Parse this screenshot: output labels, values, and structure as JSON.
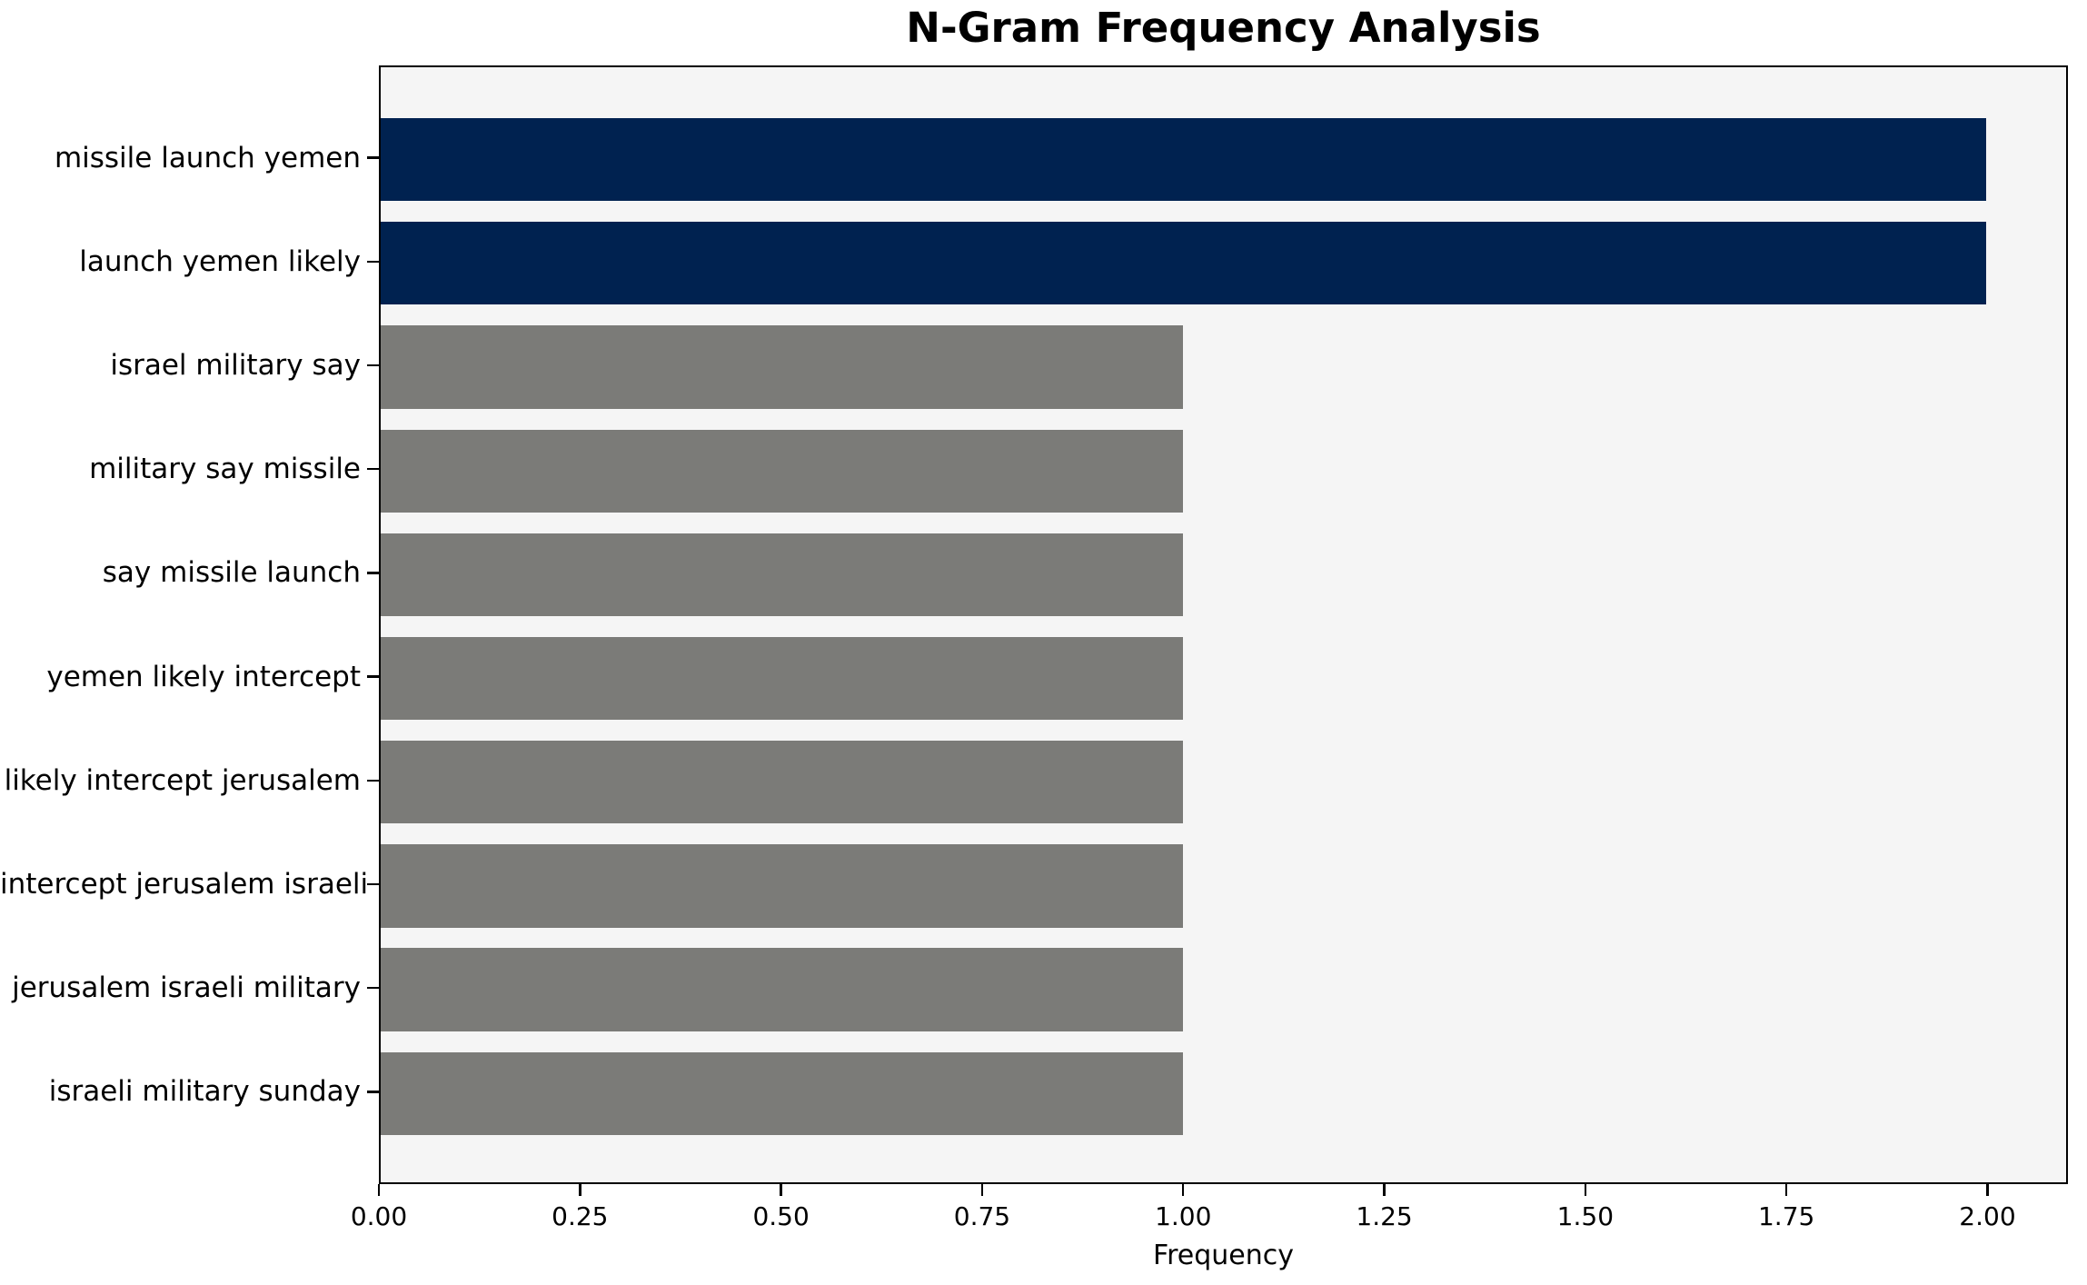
{
  "chart_data": {
    "type": "bar",
    "orientation": "horizontal",
    "title": "N-Gram Frequency Analysis",
    "xlabel": "Frequency",
    "ylabel": "",
    "categories": [
      "missile launch yemen",
      "launch yemen likely",
      "israel military say",
      "military say missile",
      "say missile launch",
      "yemen likely intercept",
      "likely intercept jerusalem",
      "intercept jerusalem israeli",
      "jerusalem israeli military",
      "israeli military sunday"
    ],
    "values": [
      2,
      2,
      1,
      1,
      1,
      1,
      1,
      1,
      1,
      1
    ],
    "bar_colors": [
      "#002250",
      "#002250",
      "#7b7b78",
      "#7b7b78",
      "#7b7b78",
      "#7b7b78",
      "#7b7b78",
      "#7b7b78",
      "#7b7b78",
      "#7b7b78"
    ],
    "xlim": [
      0,
      2.1
    ],
    "xticks": [
      {
        "value": 0.0,
        "label": "0.00"
      },
      {
        "value": 0.25,
        "label": "0.25"
      },
      {
        "value": 0.5,
        "label": "0.50"
      },
      {
        "value": 0.75,
        "label": "0.75"
      },
      {
        "value": 1.0,
        "label": "1.00"
      },
      {
        "value": 1.25,
        "label": "1.25"
      },
      {
        "value": 1.5,
        "label": "1.50"
      },
      {
        "value": 1.75,
        "label": "1.75"
      },
      {
        "value": 2.0,
        "label": "2.00"
      }
    ],
    "grid": false,
    "legend": "none"
  },
  "colors": {
    "highlight_bar": "#002250",
    "default_bar": "#7b7b78",
    "plot_background": "#f5f5f5",
    "figure_background": "#ffffff",
    "spine": "#000000",
    "text": "#000000"
  }
}
